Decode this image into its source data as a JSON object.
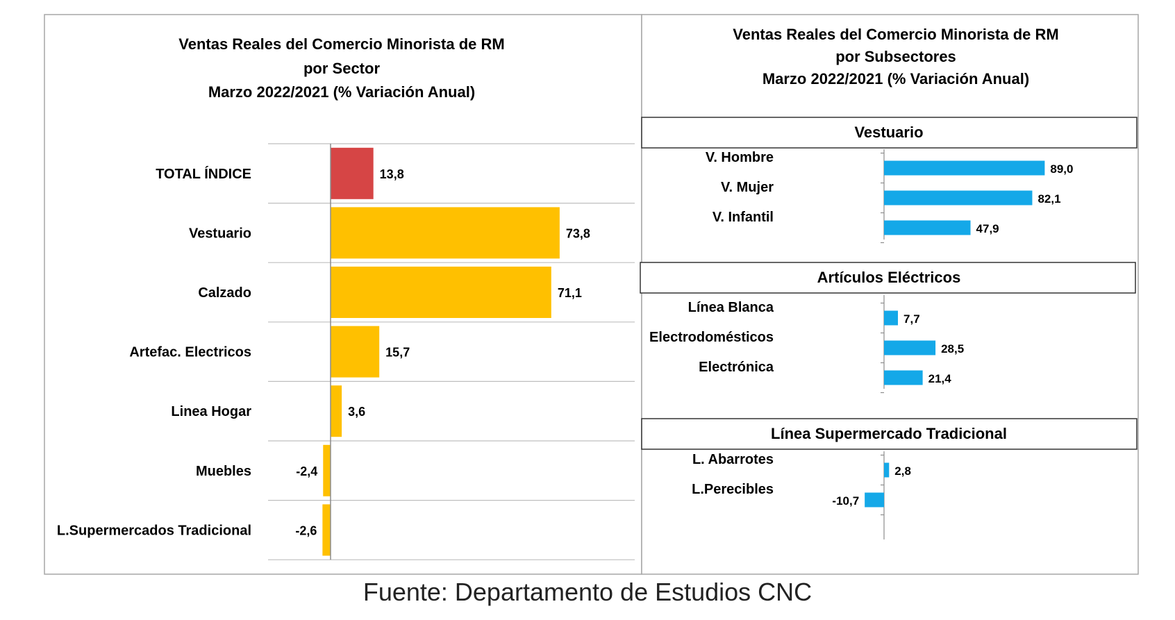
{
  "colors": {
    "total": "#D64545",
    "sector": "#FFC000",
    "subsector": "#14A8E8",
    "grid": "#BFBFBF",
    "axis": "#8C8C8C",
    "frame": "#A6A6A6"
  },
  "source": "Fuente: Departamento de Estudios CNC",
  "chart_data": [
    {
      "type": "bar",
      "orientation": "horizontal",
      "title": [
        "Ventas Reales del Comercio Minorista de RM",
        "por Sector",
        "Marzo 2022/2021 (% Variación Anual)"
      ],
      "categories": [
        "TOTAL ÍNDICE",
        "Vestuario",
        "Calzado",
        "Artefac. Electricos",
        "Linea Hogar",
        "Muebles",
        "L.Supermercados Tradicional"
      ],
      "values": [
        13.8,
        73.8,
        71.1,
        15.7,
        3.6,
        -2.4,
        -2.6
      ],
      "value_labels": [
        "13,8",
        "73,8",
        "71,1",
        "15,7",
        "3,6",
        "-2,4",
        "-2,6"
      ],
      "highlight": "TOTAL ÍNDICE",
      "grid": true
    },
    {
      "type": "bar",
      "orientation": "horizontal",
      "title": [
        "Ventas Reales del Comercio Minorista de RM",
        "por Subsectores",
        "Marzo 2022/2021 (% Variación Anual)"
      ],
      "groups": [
        {
          "name": "Vestuario",
          "categories": [
            "V. Hombre",
            "V. Mujer",
            "V. Infantil"
          ],
          "values": [
            89.0,
            82.1,
            47.9
          ],
          "value_labels": [
            "89,0",
            "82,1",
            "47,9"
          ]
        },
        {
          "name": "Artículos Eléctricos",
          "categories": [
            "Línea Blanca",
            "Electrodomésticos",
            "Electrónica"
          ],
          "values": [
            7.7,
            28.5,
            21.4
          ],
          "value_labels": [
            "7,7",
            "28,5",
            "21,4"
          ]
        },
        {
          "name": "Línea Supermercado Tradicional",
          "categories": [
            "L. Abarrotes",
            "L.Perecibles"
          ],
          "values": [
            2.8,
            -10.7
          ],
          "value_labels": [
            "2,8",
            "-10,7"
          ]
        }
      ],
      "grid": false
    }
  ]
}
